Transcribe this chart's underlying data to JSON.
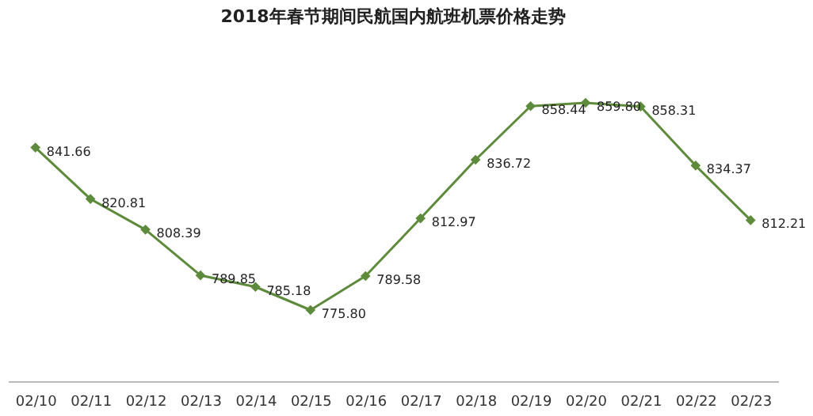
{
  "chart_data": {
    "type": "line",
    "title": "2018年春节期间民航国内航班机票价格走势",
    "categories": [
      "02/10",
      "02/11",
      "02/12",
      "02/13",
      "02/14",
      "02/15",
      "02/16",
      "02/17",
      "02/18",
      "02/19",
      "02/20",
      "02/21",
      "02/22",
      "02/23"
    ],
    "series": [
      {
        "color": "#5e8b3b",
        "values": [
          841.66,
          820.81,
          808.39,
          789.85,
          785.18,
          775.8,
          789.58,
          812.97,
          836.72,
          858.44,
          859.8,
          858.31,
          834.37,
          812.21
        ],
        "value_labels": [
          "841.66",
          "820.81",
          "808.39",
          "789.85",
          "785.18",
          "775.80",
          "789.58",
          "812.97",
          "836.72",
          "858.44",
          "859.80",
          "858.31",
          "834.37",
          "812.21"
        ]
      }
    ],
    "tick_labels": "x",
    "marker": "diamond",
    "line_style": "solid"
  }
}
